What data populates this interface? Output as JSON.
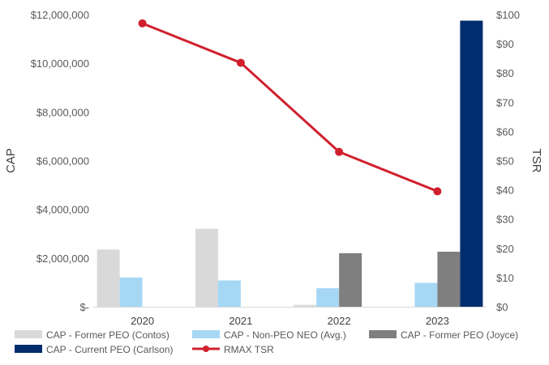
{
  "chart_data": {
    "type": "bar",
    "title": "",
    "categories": [
      "2020",
      "2021",
      "2022",
      "2023"
    ],
    "left_axis": {
      "label": "CAP",
      "ylim": [
        0,
        12000000
      ],
      "ticks": [
        {
          "value": 0,
          "label": "$-"
        },
        {
          "value": 2000000,
          "label": "$2,000,000"
        },
        {
          "value": 4000000,
          "label": "$4,000,000"
        },
        {
          "value": 6000000,
          "label": "$6,000,000"
        },
        {
          "value": 8000000,
          "label": "$8,000,000"
        },
        {
          "value": 10000000,
          "label": "$10,000,000"
        },
        {
          "value": 12000000,
          "label": "$12,000,000"
        }
      ]
    },
    "right_axis": {
      "label": "TSR",
      "ylim": [
        0,
        100
      ],
      "ticks": [
        {
          "value": 0,
          "label": "$0"
        },
        {
          "value": 10,
          "label": "$10"
        },
        {
          "value": 20,
          "label": "$20"
        },
        {
          "value": 30,
          "label": "$30"
        },
        {
          "value": 40,
          "label": "$40"
        },
        {
          "value": 50,
          "label": "$50"
        },
        {
          "value": 60,
          "label": "$60"
        },
        {
          "value": 70,
          "label": "$70"
        },
        {
          "value": 80,
          "label": "$80"
        },
        {
          "value": 90,
          "label": "$90"
        },
        {
          "value": 100,
          "label": "$100"
        }
      ]
    },
    "bar_series": [
      {
        "name": "CAP - Former PEO (Contos)",
        "color": "#d9d9d9",
        "values": [
          2350000,
          3200000,
          80000,
          0
        ]
      },
      {
        "name": "CAP - Non-PEO NEO (Avg.)",
        "color": "#a6d8f5",
        "values": [
          1200000,
          1080000,
          760000,
          980000
        ]
      },
      {
        "name": "CAP - Former PEO (Joyce)",
        "color": "#7f7f7f",
        "values": [
          0,
          0,
          2200000,
          2260000
        ]
      },
      {
        "name": "CAP - Current PEO (Carlson)",
        "color": "#002d6e",
        "values": [
          0,
          0,
          0,
          11750000
        ]
      }
    ],
    "line_series": {
      "name": "RMAX TSR",
      "color": "#d0202e",
      "values": [
        97,
        83.5,
        53,
        39.5
      ]
    },
    "legend": {
      "position": "bottom",
      "rows": [
        [
          "CAP - Former PEO (Contos)",
          "CAP - Non-PEO NEO (Avg.)",
          "CAP - Former PEO (Joyce)"
        ],
        [
          "CAP - Current PEO (Carlson)",
          "RMAX TSR"
        ]
      ]
    }
  }
}
